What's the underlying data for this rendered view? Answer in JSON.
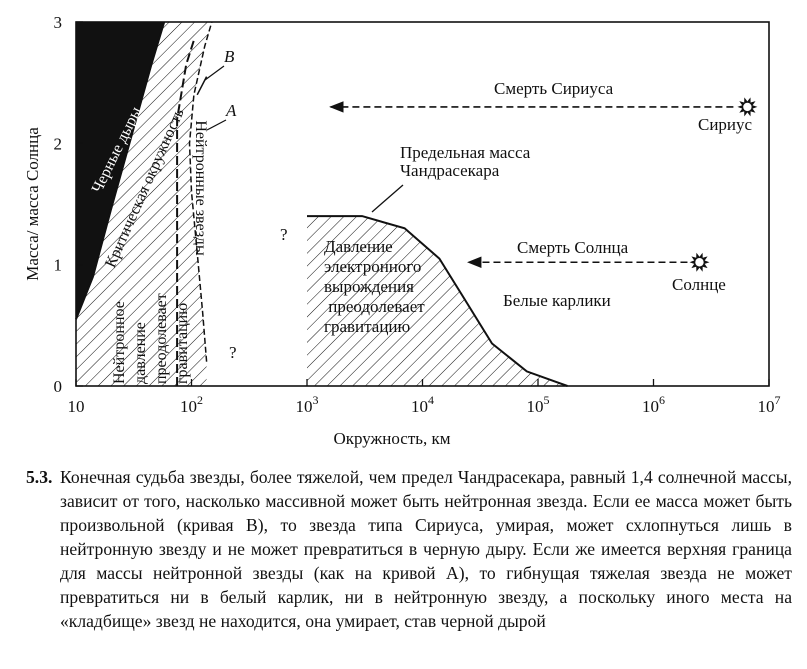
{
  "chart_data": {
    "type": "area",
    "xscale": "log",
    "xlim": [
      10,
      10000000
    ],
    "ylim": [
      0,
      3
    ],
    "xlabel": "Окружность, км",
    "ylabel": "Масса/ масса Солнца",
    "x_ticks": [
      {
        "value": 10,
        "base": "10",
        "exp": ""
      },
      {
        "value": 100,
        "base": "10",
        "exp": "2"
      },
      {
        "value": 1000,
        "base": "10",
        "exp": "3"
      },
      {
        "value": 10000,
        "base": "10",
        "exp": "4"
      },
      {
        "value": 100000,
        "base": "10",
        "exp": "5"
      },
      {
        "value": 1000000,
        "base": "10",
        "exp": "6"
      },
      {
        "value": 10000000,
        "base": "10",
        "exp": "7"
      }
    ],
    "y_ticks": [
      {
        "value": 0,
        "label": "0"
      },
      {
        "value": 1,
        "label": "1"
      },
      {
        "value": 2,
        "label": "2"
      },
      {
        "value": 3,
        "label": "3"
      }
    ],
    "regions": {
      "black_holes": {
        "label": "Черные дыры",
        "boundary": [
          [
            10,
            0.55
          ],
          [
            14,
            0.9
          ],
          [
            20,
            1.45
          ],
          [
            30,
            2.05
          ],
          [
            45,
            2.65
          ],
          [
            58,
            3.0
          ]
        ]
      },
      "critical_circumference": {
        "label": "Критическая окружность",
        "boundary": [
          [
            10,
            0.55
          ],
          [
            14,
            0.9
          ],
          [
            20,
            1.45
          ],
          [
            30,
            2.05
          ],
          [
            45,
            2.65
          ],
          [
            58,
            3.0
          ]
        ]
      },
      "neutron_stars": {
        "label_text": "Нейтронное давление преодолевает гравитацию",
        "right_edge_label": "Нейтронные звезды",
        "right_edge": [
          [
            135,
            0.2
          ],
          [
            125,
            0.6
          ],
          [
            112,
            1.1
          ],
          [
            100,
            1.6
          ],
          [
            96,
            2.0
          ],
          [
            105,
            2.4
          ],
          [
            130,
            2.8
          ],
          [
            150,
            3.0
          ]
        ]
      },
      "white_dwarfs": {
        "label_text": "Давление электронного вырождения преодолевает гравитацию",
        "curve_label": "Белые карлики",
        "curve": [
          [
            1000,
            1.4
          ],
          [
            3000,
            1.4
          ],
          [
            7000,
            1.3
          ],
          [
            14000,
            1.05
          ],
          [
            22000,
            0.75
          ],
          [
            40000,
            0.35
          ],
          [
            80000,
            0.12
          ],
          [
            180000,
            0.0
          ]
        ]
      }
    },
    "curves": [
      {
        "name": "B",
        "label": "B",
        "points": [
          [
            75,
            0.0
          ],
          [
            75,
            2.2
          ],
          [
            90,
            2.65
          ],
          [
            105,
            2.85
          ]
        ]
      },
      {
        "name": "A",
        "label": "A",
        "points": [
          [
            112,
            2.4
          ],
          [
            135,
            2.55
          ]
        ]
      }
    ],
    "annotations": [
      {
        "text": "Предельная масса",
        "text2": "Чандрасекара",
        "x": 3000,
        "y": 1.4
      },
      {
        "text": "Смерть Сириуса",
        "from": [
          6500000,
          2.3
        ],
        "to": [
          1600,
          2.3
        ]
      },
      {
        "text": "Смерть Солнца",
        "from": [
          2500000,
          1.02
        ],
        "to": [
          25000,
          1.02
        ]
      },
      {
        "text": "Сириус",
        "x": 6500000,
        "y": 2.3,
        "marker": "star"
      },
      {
        "text": "Солнце",
        "x": 2500000,
        "y": 1.02,
        "marker": "star"
      },
      {
        "text": "?",
        "x": 800,
        "y": 1.25
      },
      {
        "text": "?",
        "x": 150,
        "y": 0.3
      }
    ]
  },
  "caption": {
    "number": "5.3.",
    "text": "Конечная судьба звезды, более тяжелой, чем предел Чандрасекара, равный 1,4 солнечной массы, зависит от того, насколько массивной может быть нейтронная звезда. Если ее масса может быть произвольной (кривая B), то звезда типа Сириуса, умирая, может схлопнуться лишь в нейтронную звезду и не может превратиться в черную дыру. Если же имеется верхняя граница для массы нейтронной звезды (как на кривой A), то гибнущая тяжелая звезда не может превратиться ни в белый карлик, ни в нейтронную звезду, а поскольку иного места на «кладбище» звезд не находится, она умирает, став черной дырой"
  },
  "colors": {
    "ink": "#111111",
    "paper": "#ffffff"
  }
}
